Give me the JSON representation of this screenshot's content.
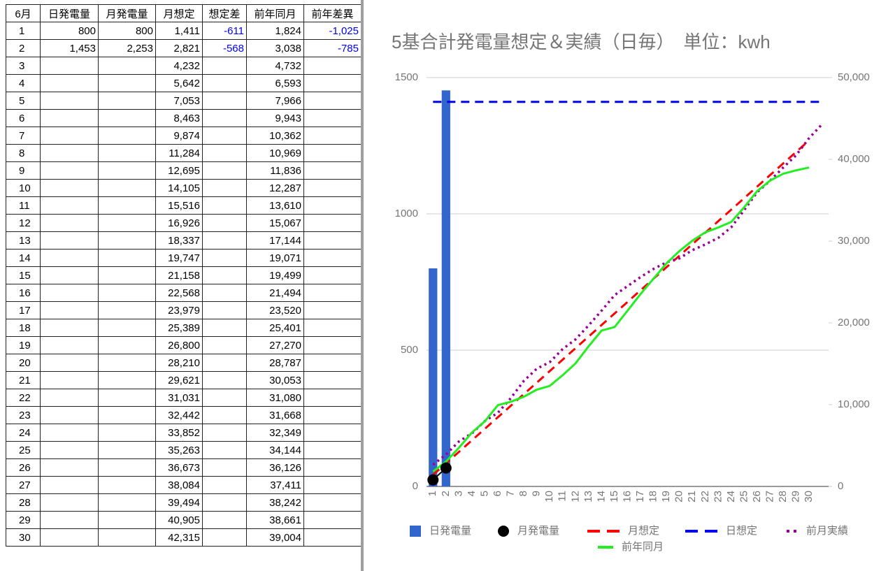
{
  "table": {
    "header": [
      "6月",
      "日発電量",
      "月発電量",
      "月想定",
      "想定差",
      "前年同月",
      "前年差異"
    ],
    "rows": [
      [
        "1",
        "800",
        "800",
        "1,411",
        "-611",
        "1,824",
        "-1,025"
      ],
      [
        "2",
        "1,453",
        "2,253",
        "2,821",
        "-568",
        "3,038",
        "-785"
      ],
      [
        "3",
        null,
        null,
        "4,232",
        null,
        "4,732",
        null
      ],
      [
        "4",
        null,
        null,
        "5,642",
        null,
        "6,593",
        null
      ],
      [
        "5",
        null,
        null,
        "7,053",
        null,
        "7,966",
        null
      ],
      [
        "6",
        null,
        null,
        "8,463",
        null,
        "9,943",
        null
      ],
      [
        "7",
        null,
        null,
        "9,874",
        null,
        "10,362",
        null
      ],
      [
        "8",
        null,
        null,
        "11,284",
        null,
        "10,969",
        null
      ],
      [
        "9",
        null,
        null,
        "12,695",
        null,
        "11,836",
        null
      ],
      [
        "10",
        null,
        null,
        "14,105",
        null,
        "12,287",
        null
      ],
      [
        "11",
        null,
        null,
        "15,516",
        null,
        "13,610",
        null
      ],
      [
        "12",
        null,
        null,
        "16,926",
        null,
        "15,067",
        null
      ],
      [
        "13",
        null,
        null,
        "18,337",
        null,
        "17,144",
        null
      ],
      [
        "14",
        null,
        null,
        "19,747",
        null,
        "19,071",
        null
      ],
      [
        "15",
        null,
        null,
        "21,158",
        null,
        "19,499",
        null
      ],
      [
        "16",
        null,
        null,
        "22,568",
        null,
        "21,494",
        null
      ],
      [
        "17",
        null,
        null,
        "23,979",
        null,
        "23,520",
        null
      ],
      [
        "18",
        null,
        null,
        "25,389",
        null,
        "25,401",
        null
      ],
      [
        "19",
        null,
        null,
        "26,800",
        null,
        "27,270",
        null
      ],
      [
        "20",
        null,
        null,
        "28,210",
        null,
        "28,787",
        null
      ],
      [
        "21",
        null,
        null,
        "29,621",
        null,
        "30,053",
        null
      ],
      [
        "22",
        null,
        null,
        "31,031",
        null,
        "31,080",
        null
      ],
      [
        "23",
        null,
        null,
        "32,442",
        null,
        "31,668",
        null
      ],
      [
        "24",
        null,
        null,
        "33,852",
        null,
        "32,349",
        null
      ],
      [
        "25",
        null,
        null,
        "35,263",
        null,
        "34,144",
        null
      ],
      [
        "26",
        null,
        null,
        "36,673",
        null,
        "36,126",
        null
      ],
      [
        "27",
        null,
        null,
        "38,084",
        null,
        "37,411",
        null
      ],
      [
        "28",
        null,
        null,
        "39,494",
        null,
        "38,242",
        null
      ],
      [
        "29",
        null,
        null,
        "40,905",
        null,
        "38,661",
        null
      ],
      [
        "30",
        null,
        null,
        "42,315",
        null,
        "39,004",
        null
      ]
    ]
  },
  "chart_data": {
    "type": "combo",
    "title": "5基合計発電量想定＆実績（日毎）　単位：kwh",
    "categories": [
      "1",
      "2",
      "3",
      "4",
      "5",
      "6",
      "7",
      "8",
      "9",
      "10",
      "11",
      "12",
      "13",
      "14",
      "15",
      "16",
      "17",
      "18",
      "19",
      "20",
      "21",
      "22",
      "23",
      "24",
      "25",
      "26",
      "27",
      "28",
      "29",
      "30",
      null
    ],
    "ylim": [
      0,
      1500
    ],
    "yticks": [
      0,
      500,
      1000,
      1500
    ],
    "y2lim": [
      0,
      50000
    ],
    "y2ticks": [
      0,
      {
        "value": 10000,
        "label": "10,000"
      },
      {
        "value": 20000,
        "label": "20,000"
      },
      {
        "value": 30000,
        "label": "30,000"
      },
      {
        "value": 40000,
        "label": "40,000"
      },
      {
        "value": 50000,
        "label": "50,000"
      }
    ],
    "grid": true,
    "series": [
      {
        "name": "日発電量",
        "kind": "bar",
        "color": "#3366cc",
        "axis": "y",
        "values": [
          800,
          1453,
          null,
          null,
          null,
          null,
          null,
          null,
          null,
          null,
          null,
          null,
          null,
          null,
          null,
          null,
          null,
          null,
          null,
          null,
          null,
          null,
          null,
          null,
          null,
          null,
          null,
          null,
          null,
          null,
          null
        ]
      },
      {
        "name": "月発電量",
        "kind": "scatter",
        "color": "#000000",
        "axis": "y2",
        "values": [
          800,
          2253,
          null,
          null,
          null,
          null,
          null,
          null,
          null,
          null,
          null,
          null,
          null,
          null,
          null,
          null,
          null,
          null,
          null,
          null,
          null,
          null,
          null,
          null,
          null,
          null,
          null,
          null,
          null,
          null,
          null
        ]
      },
      {
        "name": "月想定",
        "kind": "line",
        "dash": "dashed",
        "color": "#ff0000",
        "axis": "y2",
        "values": [
          1411,
          2821,
          4232,
          5642,
          7053,
          8463,
          9874,
          11284,
          12695,
          14105,
          15516,
          16926,
          18337,
          19747,
          21158,
          22568,
          23979,
          25389,
          26800,
          28210,
          29621,
          31031,
          32442,
          33852,
          35263,
          36673,
          38084,
          39494,
          40905,
          42315,
          null
        ]
      },
      {
        "name": "日想定",
        "kind": "line",
        "dash": "dashed",
        "color": "#0000ee",
        "axis": "y",
        "values": [
          1411,
          1411,
          1411,
          1411,
          1411,
          1411,
          1411,
          1411,
          1411,
          1411,
          1411,
          1411,
          1411,
          1411,
          1411,
          1411,
          1411,
          1411,
          1411,
          1411,
          1411,
          1411,
          1411,
          1411,
          1411,
          1411,
          1411,
          1411,
          1411,
          1411,
          1411
        ]
      },
      {
        "name": "前月実績",
        "kind": "line",
        "dash": "dotted",
        "color": "#990099",
        "axis": "y2",
        "values": [
          2650,
          3900,
          5500,
          6500,
          8000,
          9000,
          10800,
          12900,
          14400,
          15200,
          16800,
          18000,
          19700,
          21500,
          23400,
          24500,
          25600,
          26600,
          27400,
          27900,
          28900,
          29600,
          30400,
          31700,
          33800,
          36000,
          37400,
          39000,
          40500,
          42600,
          44300
        ]
      },
      {
        "name": "前年同月",
        "kind": "line",
        "dash": "solid",
        "color": "#22ee22",
        "axis": "y2",
        "values": [
          1824,
          3038,
          4732,
          6593,
          7966,
          9943,
          10362,
          10969,
          11836,
          12287,
          13610,
          15067,
          17144,
          19071,
          19499,
          21494,
          23520,
          25401,
          27270,
          28787,
          30053,
          31080,
          31668,
          32349,
          34144,
          36126,
          37411,
          38242,
          38661,
          39004,
          null
        ]
      }
    ]
  }
}
